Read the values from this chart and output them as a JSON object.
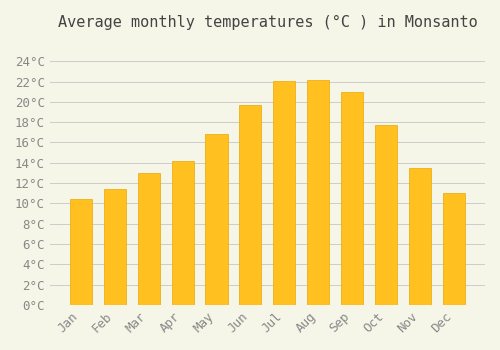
{
  "title": "Average monthly temperatures (°C ) in Monsanto",
  "months": [
    "Jan",
    "Feb",
    "Mar",
    "Apr",
    "May",
    "Jun",
    "Jul",
    "Aug",
    "Sep",
    "Oct",
    "Nov",
    "Dec"
  ],
  "temperatures": [
    10.4,
    11.4,
    13.0,
    14.2,
    16.8,
    19.7,
    22.1,
    22.2,
    21.0,
    17.7,
    13.5,
    11.0
  ],
  "bar_color": "#FFC020",
  "bar_edge_color": "#E8A800",
  "background_color": "#F5F5E8",
  "grid_color": "#CCCCCC",
  "text_color": "#888888",
  "ylim": [
    0,
    26
  ],
  "ytick_step": 2,
  "title_fontsize": 11,
  "tick_fontsize": 9
}
